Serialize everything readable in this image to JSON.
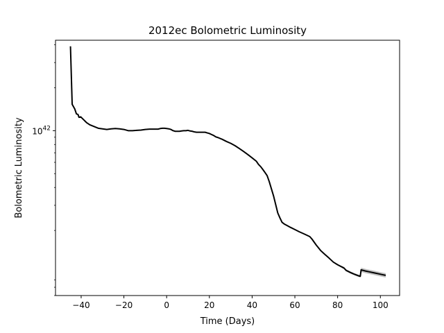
{
  "chart_data": {
    "type": "line",
    "title": "2012ec Bolometric Luminosity",
    "xlabel": "Time (Days)",
    "ylabel": "Bolometric Luminosity",
    "y_scale": "log",
    "xlim": [
      -52,
      109
    ],
    "ylim": [
      7e+40,
      4.3e+42
    ],
    "grid": false,
    "x_ticks": [
      -40,
      -20,
      0,
      20,
      40,
      60,
      80,
      100
    ],
    "x_tick_labels": [
      "−40",
      "−20",
      "0",
      "20",
      "40",
      "60",
      "80",
      "100"
    ],
    "y_ticks": [
      {
        "value": 1e+42,
        "base": "10",
        "exponent": "42"
      }
    ],
    "series": [
      {
        "color": "#000000",
        "band_color": "#b3b3b3",
        "x": [
          -45,
          -44.2,
          -43,
          -42.2,
          -41.5,
          -41,
          -40.2,
          -39,
          -37.5,
          -36,
          -34,
          -32,
          -30,
          -28,
          -26,
          -24,
          -22,
          -20,
          -18,
          -16,
          -14,
          -12,
          -10,
          -8,
          -6,
          -4,
          -3,
          -2,
          -1,
          0,
          1,
          2,
          3,
          4,
          5,
          6,
          7,
          8,
          9,
          10,
          11,
          12,
          13,
          14,
          15,
          16,
          17,
          18,
          19,
          20,
          21,
          22,
          23,
          24,
          26,
          28,
          30,
          32,
          34,
          36,
          38,
          40,
          42,
          43,
          44,
          45,
          46,
          47,
          48,
          50,
          52,
          53,
          54,
          55,
          56,
          58,
          60,
          62,
          64,
          66,
          67,
          68,
          70,
          72,
          74,
          76,
          78,
          80,
          82,
          83,
          84,
          86,
          88,
          90,
          90.6,
          91,
          93,
          95,
          97,
          99,
          101,
          102.5
        ],
        "y": [
          3.9e+42,
          1.53e+42,
          1.42e+42,
          1.31e+42,
          1.3e+42,
          1.24e+42,
          1.25e+42,
          1.2e+42,
          1.14e+42,
          1.1e+42,
          1.07e+42,
          1.04e+42,
          1.03e+42,
          1.02e+42,
          1.03e+42,
          1.035e+42,
          1.03e+42,
          1.02e+42,
          1e+42,
          1e+42,
          1.005e+42,
          1.01e+42,
          1.02e+42,
          1.025e+42,
          1.025e+42,
          1.025e+42,
          1.035e+42,
          1.04e+42,
          1.04e+42,
          1.035e+42,
          1.03e+42,
          1.02e+42,
          1e+42,
          9.9e+41,
          9.9e+41,
          9.9e+41,
          9.95e+41,
          1e+42,
          1e+42,
          1.005e+42,
          9.95e+41,
          9.9e+41,
          9.8e+41,
          9.75e+41,
          9.75e+41,
          9.75e+41,
          9.75e+41,
          9.75e+41,
          9.65e+41,
          9.55e+41,
          9.4e+41,
          9.25e+41,
          9.05e+41,
          8.95e+41,
          8.7e+41,
          8.4e+41,
          8.15e+41,
          7.85e+41,
          7.5e+41,
          7.15e+41,
          6.8e+41,
          6.45e+41,
          6.1e+41,
          5.8e+41,
          5.6e+41,
          5.35e+41,
          5.1e+41,
          4.85e+41,
          4.4e+41,
          3.5e+41,
          2.65e+41,
          2.45e+41,
          2.28e+41,
          2.22e+41,
          2.18e+41,
          2.1e+41,
          2.03e+41,
          1.96e+41,
          1.9e+41,
          1.84e+41,
          1.81e+41,
          1.74e+41,
          1.58e+41,
          1.45e+41,
          1.36e+41,
          1.28e+41,
          1.2e+41,
          1.15e+41,
          1.11e+41,
          1.09e+41,
          1.05e+41,
          1.015e+41,
          9.85e+40,
          9.6e+40,
          9.55e+40,
          1.06e+41,
          1.04e+41,
          1.025e+41,
          1.01e+41,
          9.95e+40,
          9.8e+40,
          9.7e+40
        ],
        "band_from_x": 82
      }
    ]
  }
}
